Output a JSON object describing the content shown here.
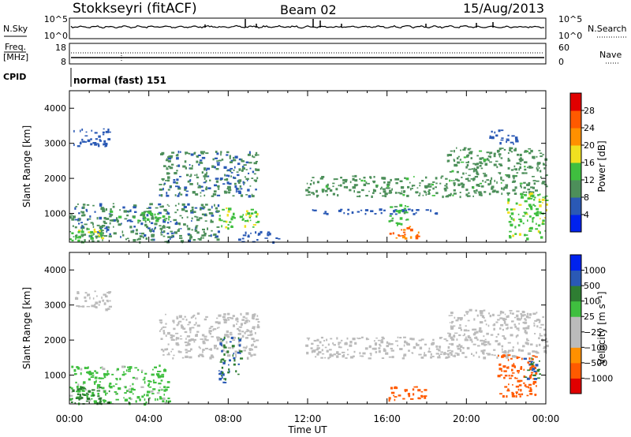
{
  "header": {
    "station": "Stokkseyri (fitACF)",
    "beam": "Beam 02",
    "date": "15/Aug/2013"
  },
  "noise_panel": {
    "left_label": "N.Sky",
    "right_label": "N.Search",
    "left_ticks": [
      "10^5",
      "10^0"
    ],
    "right_ticks": [
      "10^5",
      "10^0"
    ]
  },
  "freq_panel": {
    "left_label_line1": "Freq.",
    "left_label_line2": "[MHz]",
    "right_label": "Nave",
    "left_ticks": [
      "18",
      "8"
    ],
    "right_ticks": [
      "60",
      "0"
    ]
  },
  "cpid_panel": {
    "label": "CPID",
    "text": "normal (fast) 151"
  },
  "colors": {
    "power_scale": [
      "#0022ee",
      "#2a59b5",
      "#4d8f5a",
      "#3fbf3f",
      "#f0e020",
      "#ff9000",
      "#ff5a00",
      "#e00000"
    ],
    "velocity_scale": [
      "#e00000",
      "#ff5a00",
      "#ff9000",
      "#bbbbbb",
      "#bbbbbb",
      "#3fbf3f",
      "#2e7d32",
      "#2a59b5",
      "#0022ee"
    ]
  },
  "chart_data": [
    {
      "type": "heatmap",
      "panel": "power",
      "xlabel": "Time UT",
      "ylabel": "Slant Range [km]",
      "xticks": [
        "00:00",
        "04:00",
        "08:00",
        "12:00",
        "16:00",
        "20:00",
        "00:00"
      ],
      "yticks": [
        1000,
        2000,
        3000,
        4000
      ],
      "ylim": [
        180,
        4500
      ],
      "colorbar": {
        "label": "Power [dB]",
        "ticks": [
          "4",
          "8",
          "12",
          "16",
          "20",
          "24",
          "28"
        ],
        "range": [
          0,
          30
        ]
      },
      "regions": [
        {
          "t": [
            0.2,
            2.0
          ],
          "r": [
            2900,
            3450
          ],
          "v": 6
        },
        {
          "t": [
            0.0,
            7.5
          ],
          "r": [
            200,
            1300
          ],
          "v": 8
        },
        {
          "t": [
            0.0,
            2.0
          ],
          "r": [
            200,
            600
          ],
          "v": 14
        },
        {
          "t": [
            2.0,
            5.0
          ],
          "r": [
            800,
            1100
          ],
          "v": 12
        },
        {
          "t": [
            4.5,
            9.5
          ],
          "r": [
            1500,
            2800
          ],
          "v": 8
        },
        {
          "t": [
            7.5,
            9.5
          ],
          "r": [
            600,
            1200
          ],
          "v": 14
        },
        {
          "t": [
            8.5,
            10.5
          ],
          "r": [
            200,
            500
          ],
          "v": 6
        },
        {
          "t": [
            11.8,
            19.0
          ],
          "r": [
            1500,
            2100
          ],
          "v": 10
        },
        {
          "t": [
            12.0,
            18.5
          ],
          "r": [
            1000,
            1150
          ],
          "v": 6
        },
        {
          "t": [
            16.0,
            17.6
          ],
          "r": [
            300,
            650
          ],
          "v": 22
        },
        {
          "t": [
            16.0,
            17.0
          ],
          "r": [
            700,
            1300
          ],
          "v": 12
        },
        {
          "t": [
            19.0,
            24.0
          ],
          "r": [
            1500,
            2900
          ],
          "v": 10
        },
        {
          "t": [
            22.0,
            24.0
          ],
          "r": [
            300,
            1600
          ],
          "v": 14
        },
        {
          "t": [
            21.0,
            22.5
          ],
          "r": [
            3000,
            3400
          ],
          "v": 6
        }
      ]
    },
    {
      "type": "heatmap",
      "panel": "velocity",
      "xlabel": "Time UT",
      "ylabel": "Slant Range [km]",
      "xticks": [
        "00:00",
        "04:00",
        "08:00",
        "12:00",
        "16:00",
        "20:00",
        "00:00"
      ],
      "yticks": [
        1000,
        2000,
        3000,
        4000
      ],
      "ylim": [
        180,
        4500
      ],
      "colorbar": {
        "label": "Velocity [m s⁻¹]",
        "ticks": [
          "1000",
          "500",
          "100",
          "25",
          "−25",
          "−100",
          "−500",
          "−1000"
        ]
      },
      "regions": [
        {
          "t": [
            0.2,
            2.0
          ],
          "r": [
            2900,
            3450
          ],
          "v": 0
        },
        {
          "t": [
            0.0,
            5.0
          ],
          "r": [
            200,
            1300
          ],
          "v": 40
        },
        {
          "t": [
            0.0,
            2.0
          ],
          "r": [
            200,
            700
          ],
          "v": 120
        },
        {
          "t": [
            4.5,
            9.5
          ],
          "r": [
            1500,
            2800
          ],
          "v": 0
        },
        {
          "t": [
            7.5,
            8.6
          ],
          "r": [
            800,
            2100
          ],
          "v": 300
        },
        {
          "t": [
            11.8,
            19.0
          ],
          "r": [
            1500,
            2100
          ],
          "v": 0
        },
        {
          "t": [
            16.0,
            18.0
          ],
          "r": [
            300,
            700
          ],
          "v": -200
        },
        {
          "t": [
            19.0,
            24.0
          ],
          "r": [
            1500,
            2900
          ],
          "v": 0
        },
        {
          "t": [
            21.5,
            23.5
          ],
          "r": [
            400,
            1600
          ],
          "v": -300
        },
        {
          "t": [
            22.8,
            23.7
          ],
          "r": [
            900,
            1500
          ],
          "v": 300
        }
      ]
    }
  ]
}
